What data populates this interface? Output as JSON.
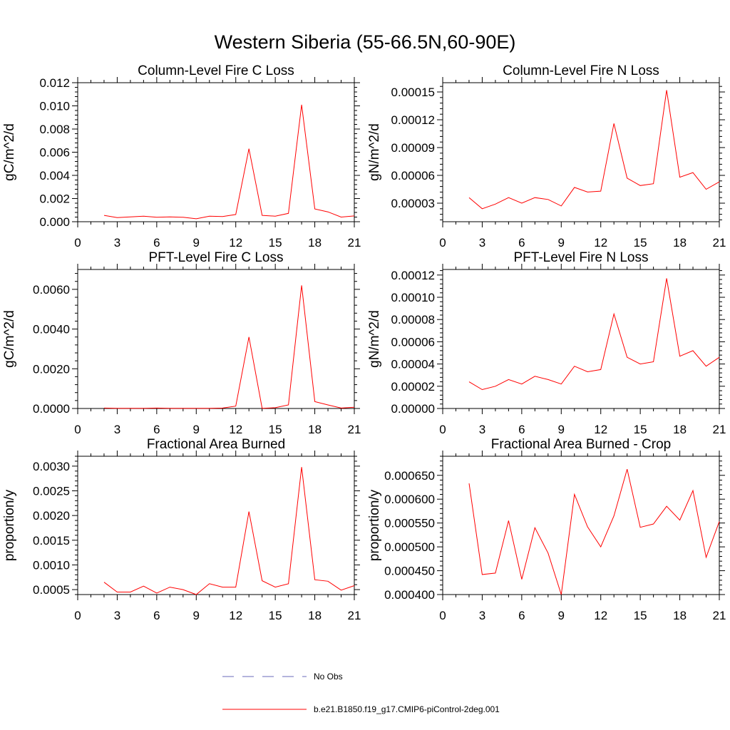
{
  "figure": {
    "title": "Western Siberia (55-66.5N,60-90E)",
    "legend": [
      {
        "label": "No Obs",
        "color": "#6a6ab8",
        "dash": true
      },
      {
        "label": "b.e21.B1850.f19_g17.CMIP6-piControl-2deg.001",
        "color": "#ff0000",
        "dash": false
      }
    ]
  },
  "chart_data": [
    {
      "type": "line",
      "title": "Column-Level Fire C Loss",
      "ylabel": "gC/m^2/d",
      "xlim": [
        0,
        21
      ],
      "xticks": [
        0,
        3,
        6,
        9,
        12,
        15,
        18,
        21
      ],
      "xtick_labels": [
        "0",
        "3",
        "6",
        "9",
        "12",
        "15",
        "18",
        "21"
      ],
      "ylim": [
        0,
        0.012
      ],
      "yticks": [
        0,
        0.002,
        0.004,
        0.006,
        0.008,
        0.01,
        0.012
      ],
      "ytick_labels": [
        "0.000",
        "0.002",
        "0.004",
        "0.006",
        "0.008",
        "0.010",
        "0.012"
      ],
      "series": [
        {
          "name": "b.e21.B1850.f19_g17.CMIP6-piControl-2deg.001",
          "color": "#ff0000",
          "x": [
            2,
            3,
            4,
            5,
            6,
            7,
            8,
            9,
            10,
            11,
            12,
            13,
            14,
            15,
            16,
            17,
            18,
            19,
            20,
            21
          ],
          "y": [
            0.00055,
            0.00035,
            0.00042,
            0.00048,
            0.00038,
            0.00042,
            0.00038,
            0.00025,
            0.00048,
            0.00045,
            0.00062,
            0.0063,
            0.00055,
            0.00048,
            0.00072,
            0.0101,
            0.0011,
            0.00085,
            0.0004,
            0.0005
          ]
        }
      ]
    },
    {
      "type": "line",
      "title": "Column-Level Fire N Loss",
      "ylabel": "gN/m^2/d",
      "xlim": [
        0,
        21
      ],
      "xticks": [
        0,
        3,
        6,
        9,
        12,
        15,
        18,
        21
      ],
      "xtick_labels": [
        "0",
        "3",
        "6",
        "9",
        "12",
        "15",
        "18",
        "21"
      ],
      "ylim": [
        1e-05,
        0.00016
      ],
      "yticks": [
        3e-05,
        6e-05,
        9e-05,
        0.00012,
        0.00015
      ],
      "ytick_labels": [
        "0.00003",
        "0.00006",
        "0.00009",
        "0.00012",
        "0.00015"
      ],
      "series": [
        {
          "name": "b.e21.B1850.f19_g17.CMIP6-piControl-2deg.001",
          "color": "#ff0000",
          "x": [
            2,
            3,
            4,
            5,
            6,
            7,
            8,
            9,
            10,
            11,
            12,
            13,
            14,
            15,
            16,
            17,
            18,
            19,
            20,
            21
          ],
          "y": [
            3.6e-05,
            2.4e-05,
            2.9e-05,
            3.6e-05,
            3e-05,
            3.6e-05,
            3.4e-05,
            2.7e-05,
            4.7e-05,
            4.2e-05,
            4.3e-05,
            0.000116,
            5.7e-05,
            4.9e-05,
            5.1e-05,
            0.000152,
            5.8e-05,
            6.3e-05,
            4.5e-05,
            5.3e-05
          ]
        }
      ]
    },
    {
      "type": "line",
      "title": "PFT-Level Fire C Loss",
      "ylabel": "gC/m^2/d",
      "xlim": [
        0,
        21
      ],
      "xticks": [
        0,
        3,
        6,
        9,
        12,
        15,
        18,
        21
      ],
      "xtick_labels": [
        "0",
        "3",
        "6",
        "9",
        "12",
        "15",
        "18",
        "21"
      ],
      "ylim": [
        0,
        0.007
      ],
      "yticks": [
        0,
        0.002,
        0.004,
        0.006
      ],
      "ytick_labels": [
        "0.0000",
        "0.0020",
        "0.0040",
        "0.0060"
      ],
      "series": [
        {
          "name": "b.e21.B1850.f19_g17.CMIP6-piControl-2deg.001",
          "color": "#ff0000",
          "x": [
            2,
            3,
            4,
            5,
            6,
            7,
            8,
            9,
            10,
            11,
            12,
            13,
            14,
            15,
            16,
            17,
            18,
            19,
            20,
            21
          ],
          "y": [
            2e-05,
            1e-05,
            1e-05,
            1e-05,
            2e-05,
            1e-05,
            1e-05,
            1e-05,
            1e-05,
            2e-05,
            0.00012,
            0.0036,
            1e-05,
            4e-05,
            0.00018,
            0.0062,
            0.00035,
            0.00018,
            2e-05,
            6e-05
          ]
        }
      ]
    },
    {
      "type": "line",
      "title": "PFT-Level Fire N Loss",
      "ylabel": "gN/m^2/d",
      "xlim": [
        0,
        21
      ],
      "xticks": [
        0,
        3,
        6,
        9,
        12,
        15,
        18,
        21
      ],
      "xtick_labels": [
        "0",
        "3",
        "6",
        "9",
        "12",
        "15",
        "18",
        "21"
      ],
      "ylim": [
        0,
        0.000125
      ],
      "yticks": [
        0,
        2e-05,
        4e-05,
        6e-05,
        8e-05,
        0.0001,
        0.00012
      ],
      "ytick_labels": [
        "0.00000",
        "0.00002",
        "0.00004",
        "0.00006",
        "0.00008",
        "0.00010",
        "0.00012"
      ],
      "series": [
        {
          "name": "b.e21.B1850.f19_g17.CMIP6-piControl-2deg.001",
          "color": "#ff0000",
          "x": [
            2,
            3,
            4,
            5,
            6,
            7,
            8,
            9,
            10,
            11,
            12,
            13,
            14,
            15,
            16,
            17,
            18,
            19,
            20,
            21
          ],
          "y": [
            2.4e-05,
            1.7e-05,
            2e-05,
            2.6e-05,
            2.2e-05,
            2.9e-05,
            2.6e-05,
            2.2e-05,
            3.8e-05,
            3.3e-05,
            3.5e-05,
            8.5e-05,
            4.6e-05,
            4e-05,
            4.2e-05,
            0.000117,
            4.7e-05,
            5.2e-05,
            3.8e-05,
            4.6e-05
          ]
        }
      ]
    },
    {
      "type": "line",
      "title": "Fractional Area Burned",
      "ylabel": "proportion/y",
      "xlim": [
        0,
        21
      ],
      "xticks": [
        0,
        3,
        6,
        9,
        12,
        15,
        18,
        21
      ],
      "xtick_labels": [
        "0",
        "3",
        "6",
        "9",
        "12",
        "15",
        "18",
        "21"
      ],
      "ylim": [
        0.0004,
        0.0032
      ],
      "yticks": [
        0.0005,
        0.001,
        0.0015,
        0.002,
        0.0025,
        0.003
      ],
      "ytick_labels": [
        "0.0005",
        "0.0010",
        "0.0015",
        "0.0020",
        "0.0025",
        "0.0030"
      ],
      "series": [
        {
          "name": "b.e21.B1850.f19_g17.CMIP6-piControl-2deg.001",
          "color": "#ff0000",
          "x": [
            2,
            3,
            4,
            5,
            6,
            7,
            8,
            9,
            10,
            11,
            12,
            13,
            14,
            15,
            16,
            17,
            18,
            19,
            20,
            21
          ],
          "y": [
            0.00065,
            0.00045,
            0.00045,
            0.00057,
            0.00043,
            0.00055,
            0.0005,
            0.0004,
            0.00062,
            0.00055,
            0.00055,
            0.00208,
            0.00068,
            0.00055,
            0.00062,
            0.00298,
            0.0007,
            0.00067,
            0.00049,
            0.00058
          ]
        }
      ]
    },
    {
      "type": "line",
      "title": "Fractional Area Burned - Crop",
      "ylabel": "proportion/y",
      "xlim": [
        0,
        21
      ],
      "xticks": [
        0,
        3,
        6,
        9,
        12,
        15,
        18,
        21
      ],
      "xtick_labels": [
        "0",
        "3",
        "6",
        "9",
        "12",
        "15",
        "18",
        "21"
      ],
      "ylim": [
        0.0004,
        0.00069
      ],
      "yticks": [
        0.0004,
        0.00045,
        0.0005,
        0.00055,
        0.0006,
        0.00065
      ],
      "ytick_labels": [
        "0.000400",
        "0.000450",
        "0.000500",
        "0.000550",
        "0.000600",
        "0.000650"
      ],
      "series": [
        {
          "name": "b.e21.B1850.f19_g17.CMIP6-piControl-2deg.001",
          "color": "#ff0000",
          "x": [
            2,
            3,
            4,
            5,
            6,
            7,
            8,
            9,
            10,
            11,
            12,
            13,
            14,
            15,
            16,
            17,
            18,
            19,
            20,
            21
          ],
          "y": [
            0.000633,
            0.000442,
            0.000445,
            0.000555,
            0.000432,
            0.00054,
            0.000487,
            0.0004,
            0.00061,
            0.000542,
            0.0005,
            0.000565,
            0.000663,
            0.000541,
            0.000548,
            0.000585,
            0.000556,
            0.000618,
            0.000478,
            0.000553
          ]
        }
      ]
    }
  ]
}
